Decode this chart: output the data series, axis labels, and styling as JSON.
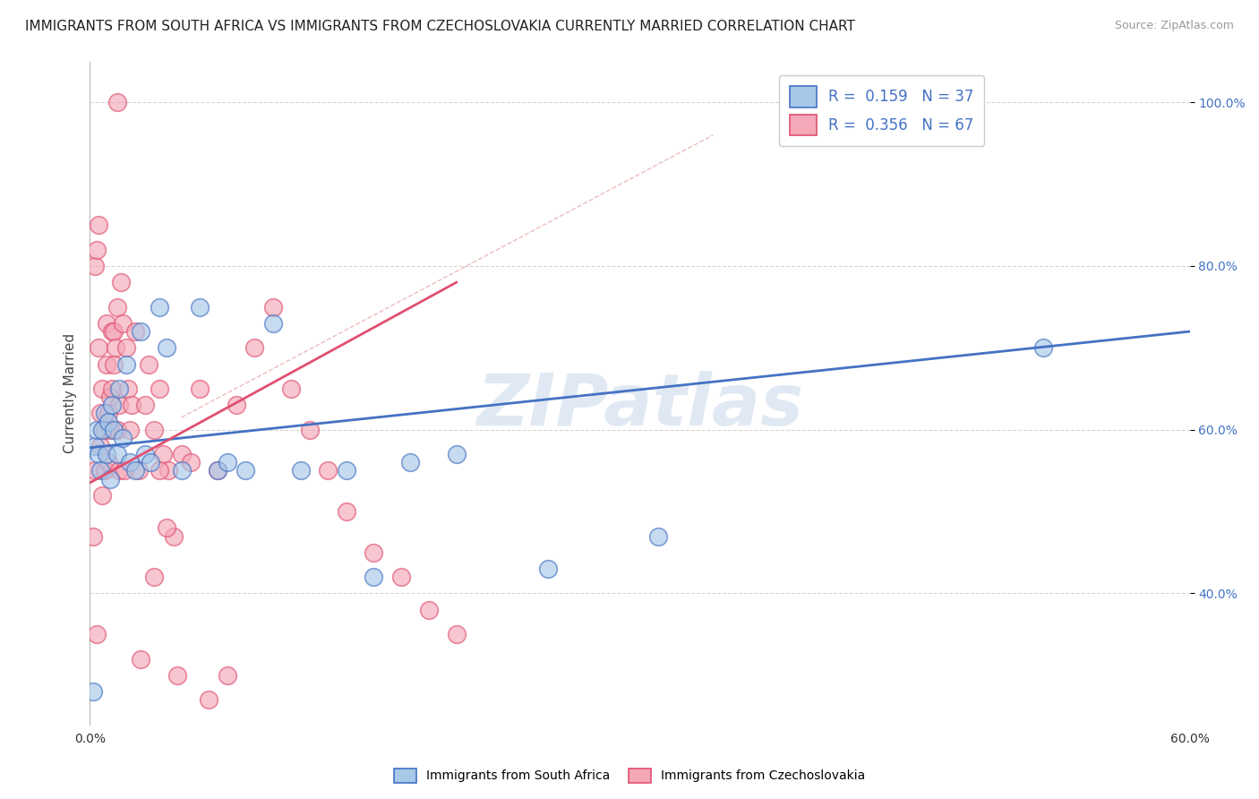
{
  "title": "IMMIGRANTS FROM SOUTH AFRICA VS IMMIGRANTS FROM CZECHOSLOVAKIA CURRENTLY MARRIED CORRELATION CHART",
  "source": "Source: ZipAtlas.com",
  "ylabel": "Currently Married",
  "xlim": [
    0.0,
    0.6
  ],
  "ylim": [
    0.24,
    1.05
  ],
  "xticks": [
    0.0,
    0.1,
    0.2,
    0.3,
    0.4,
    0.5,
    0.6
  ],
  "xticklabels": [
    "0.0%",
    "",
    "",
    "",
    "",
    "",
    "60.0%"
  ],
  "yticks": [
    0.4,
    0.6,
    0.8,
    1.0
  ],
  "yticklabels": [
    "40.0%",
    "60.0%",
    "80.0%",
    "100.0%"
  ],
  "color_blue": "#a8c8e8",
  "color_pink": "#f4a8b8",
  "color_blue_line": "#4472c4",
  "color_pink_line": "#e05070",
  "color_diag": "#e0a0b0",
  "watermark": "ZIPatlas",
  "legend_labels": [
    "Immigrants from South Africa",
    "Immigrants from Czechoslovakia"
  ],
  "blue_points_x": [
    0.002,
    0.003,
    0.004,
    0.005,
    0.006,
    0.007,
    0.008,
    0.009,
    0.01,
    0.011,
    0.012,
    0.013,
    0.015,
    0.016,
    0.018,
    0.02,
    0.022,
    0.025,
    0.028,
    0.03,
    0.033,
    0.038,
    0.042,
    0.05,
    0.06,
    0.07,
    0.075,
    0.085,
    0.1,
    0.115,
    0.14,
    0.155,
    0.175,
    0.2,
    0.25,
    0.31,
    0.52
  ],
  "blue_points_y": [
    0.28,
    0.58,
    0.6,
    0.57,
    0.55,
    0.6,
    0.62,
    0.57,
    0.61,
    0.54,
    0.63,
    0.6,
    0.57,
    0.65,
    0.59,
    0.68,
    0.56,
    0.55,
    0.72,
    0.57,
    0.56,
    0.75,
    0.7,
    0.55,
    0.75,
    0.55,
    0.56,
    0.55,
    0.73,
    0.55,
    0.55,
    0.42,
    0.56,
    0.57,
    0.43,
    0.47,
    0.7
  ],
  "pink_points_x": [
    0.002,
    0.003,
    0.003,
    0.004,
    0.004,
    0.005,
    0.005,
    0.006,
    0.006,
    0.007,
    0.007,
    0.008,
    0.008,
    0.009,
    0.009,
    0.01,
    0.01,
    0.011,
    0.011,
    0.012,
    0.012,
    0.013,
    0.013,
    0.014,
    0.015,
    0.015,
    0.016,
    0.016,
    0.017,
    0.018,
    0.019,
    0.02,
    0.021,
    0.022,
    0.023,
    0.025,
    0.027,
    0.03,
    0.032,
    0.035,
    0.038,
    0.04,
    0.043,
    0.046,
    0.05,
    0.055,
    0.06,
    0.07,
    0.08,
    0.09,
    0.1,
    0.11,
    0.12,
    0.13,
    0.14,
    0.155,
    0.17,
    0.185,
    0.2,
    0.015,
    0.028,
    0.035,
    0.038,
    0.042,
    0.048,
    0.065,
    0.075
  ],
  "pink_points_y": [
    0.47,
    0.8,
    0.55,
    0.82,
    0.35,
    0.85,
    0.7,
    0.58,
    0.62,
    0.65,
    0.52,
    0.6,
    0.55,
    0.73,
    0.68,
    0.56,
    0.62,
    0.64,
    0.6,
    0.72,
    0.65,
    0.68,
    0.72,
    0.7,
    0.75,
    0.6,
    0.63,
    0.55,
    0.78,
    0.73,
    0.55,
    0.7,
    0.65,
    0.6,
    0.63,
    0.72,
    0.55,
    0.63,
    0.68,
    0.6,
    0.65,
    0.57,
    0.55,
    0.47,
    0.57,
    0.56,
    0.65,
    0.55,
    0.63,
    0.7,
    0.75,
    0.65,
    0.6,
    0.55,
    0.5,
    0.45,
    0.42,
    0.38,
    0.35,
    1.0,
    0.32,
    0.42,
    0.55,
    0.48,
    0.3,
    0.27,
    0.3
  ],
  "blue_line_x": [
    0.0,
    0.6
  ],
  "blue_line_y": [
    0.578,
    0.72
  ],
  "pink_line_x": [
    0.0,
    0.2
  ],
  "pink_line_y": [
    0.535,
    0.78
  ],
  "diag_line_x": [
    0.05,
    0.34
  ],
  "diag_line_y": [
    0.615,
    0.96
  ]
}
